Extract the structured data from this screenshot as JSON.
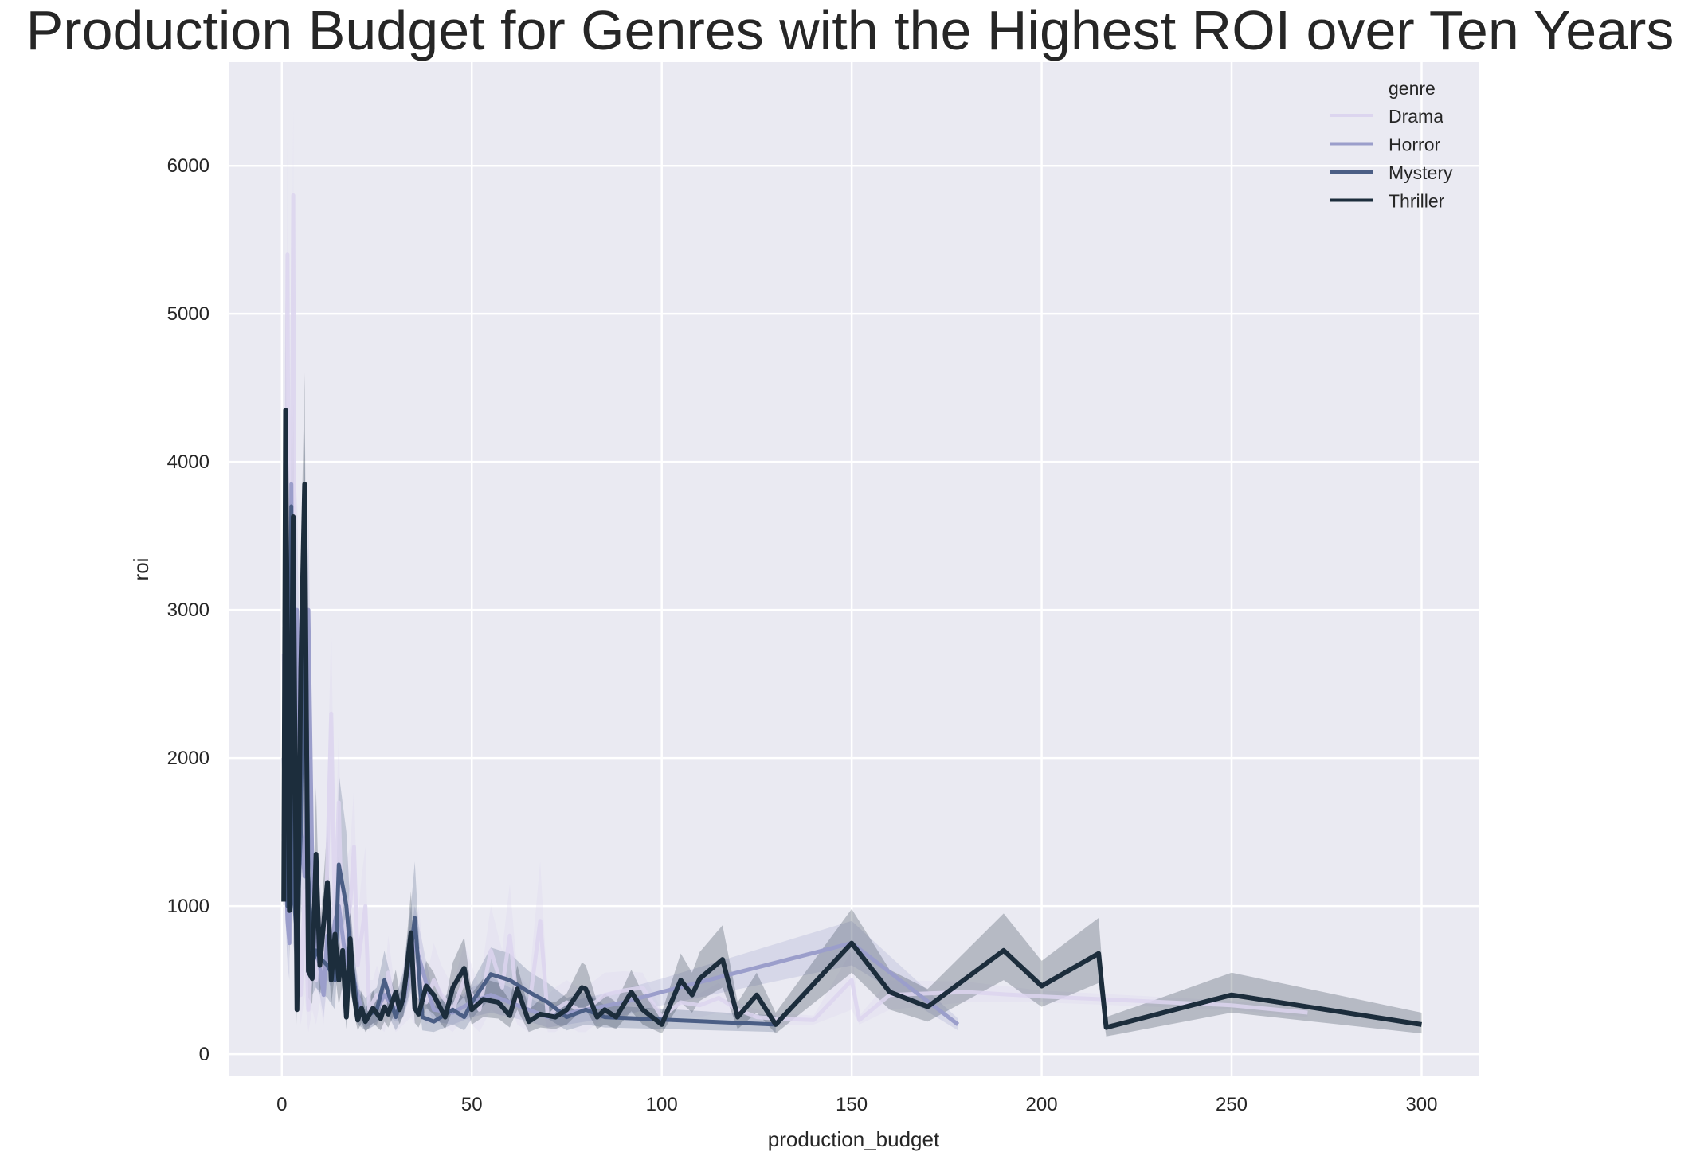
{
  "chart_data": {
    "type": "line",
    "title": "Production Budget for Genres with the Highest ROI over Ten Years",
    "xlabel": "production_budget",
    "ylabel": "roi",
    "xlim": [
      -14,
      315
    ],
    "ylim": [
      -150,
      6700
    ],
    "xticks": [
      0,
      50,
      100,
      150,
      200,
      250,
      300
    ],
    "yticks": [
      0,
      1000,
      2000,
      3000,
      4000,
      5000,
      6000
    ],
    "grid": true,
    "background": "#eaeaf2",
    "legend": {
      "title": "genre",
      "placement": "top-right"
    },
    "series": [
      {
        "name": "Drama",
        "color": "#dcd5ef",
        "width": 5,
        "opacity": 0.85,
        "x": [
          0.5,
          1,
          1.5,
          2,
          2.5,
          3,
          3.5,
          4,
          4.5,
          5,
          6,
          7,
          8,
          9,
          10,
          11,
          12,
          13,
          14,
          15,
          16,
          17,
          18,
          19,
          20,
          21,
          22,
          23,
          24,
          25,
          27,
          28,
          30,
          32,
          34,
          35,
          36,
          38,
          40,
          42,
          45,
          48,
          50,
          52,
          55,
          58,
          60,
          62,
          65,
          68,
          70,
          72,
          75,
          78,
          80,
          85,
          90,
          95,
          100,
          105,
          110,
          115,
          120,
          125,
          130,
          140,
          150,
          152,
          160,
          180,
          200,
          250,
          270
        ],
        "y": [
          2700,
          2000,
          5400,
          1900,
          3200,
          5800,
          1600,
          2400,
          700,
          400,
          1100,
          300,
          700,
          500,
          900,
          400,
          1300,
          2300,
          900,
          1700,
          600,
          900,
          1000,
          1400,
          600,
          800,
          1000,
          300,
          350,
          400,
          300,
          550,
          250,
          400,
          600,
          450,
          700,
          350,
          500,
          400,
          300,
          500,
          400,
          300,
          700,
          450,
          800,
          350,
          300,
          900,
          250,
          300,
          350,
          300,
          300,
          400,
          430,
          450,
          250,
          350,
          330,
          380,
          300,
          250,
          240,
          230,
          500,
          230,
          400,
          420,
          390,
          330,
          280
        ],
        "lower": [
          1200,
          900,
          1800,
          700,
          1000,
          1400,
          600,
          900,
          300,
          200,
          400,
          150,
          300,
          200,
          350,
          200,
          500,
          800,
          400,
          600,
          250,
          350,
          400,
          500,
          300,
          350,
          400,
          150,
          200,
          200,
          150,
          250,
          150,
          200,
          250,
          200,
          300,
          200,
          250,
          200,
          150,
          250,
          200,
          150,
          300,
          250,
          350,
          200,
          150,
          400,
          150,
          150,
          200,
          150,
          150,
          250,
          300,
          350,
          200,
          250,
          250,
          280,
          250,
          200,
          200,
          200,
          300,
          200,
          300,
          350,
          350,
          300,
          250
        ],
        "upper": [
          3200,
          2600,
          6200,
          2600,
          3900,
          6400,
          2200,
          3000,
          1100,
          700,
          1500,
          500,
          1000,
          800,
          1300,
          700,
          1800,
          2900,
          1300,
          2200,
          900,
          1300,
          1400,
          1800,
          900,
          1200,
          1400,
          500,
          500,
          600,
          450,
          800,
          400,
          600,
          900,
          700,
          1000,
          500,
          750,
          600,
          450,
          750,
          600,
          450,
          1000,
          700,
          1150,
          550,
          450,
          1300,
          400,
          450,
          500,
          450,
          450,
          550,
          560,
          550,
          300,
          450,
          410,
          480,
          350,
          300,
          280,
          260,
          700,
          260,
          500,
          490,
          430,
          360,
          310
        ]
      },
      {
        "name": "Horror",
        "color": "#9b9ecb",
        "width": 5,
        "opacity": 1,
        "x": [
          0.5,
          1,
          1.5,
          2,
          2.5,
          3,
          4,
          5,
          6,
          7,
          8,
          9,
          10,
          11,
          12,
          13,
          14,
          15,
          16,
          17,
          18,
          19,
          20,
          21,
          22,
          25,
          27,
          30,
          32,
          35,
          40,
          45,
          50,
          55,
          60,
          65,
          70,
          80,
          90,
          100,
          150,
          178
        ],
        "y": [
          2000,
          1400,
          900,
          750,
          3850,
          1200,
          3000,
          1500,
          1200,
          3000,
          1300,
          700,
          600,
          400,
          800,
          700,
          900,
          1000,
          800,
          600,
          700,
          500,
          400,
          300,
          250,
          300,
          400,
          300,
          350,
          750,
          300,
          280,
          350,
          400,
          350,
          300,
          250,
          300,
          350,
          420,
          750,
          200
        ],
        "lower": [
          1300,
          900,
          600,
          500,
          2500,
          800,
          2000,
          1000,
          800,
          2000,
          850,
          450,
          400,
          250,
          500,
          450,
          600,
          650,
          500,
          400,
          450,
          350,
          280,
          220,
          180,
          220,
          280,
          220,
          250,
          500,
          220,
          200,
          250,
          280,
          250,
          220,
          180,
          220,
          260,
          330,
          600,
          160
        ],
        "upper": [
          2600,
          1900,
          1200,
          1000,
          4100,
          1600,
          3800,
          2000,
          1600,
          3700,
          1700,
          950,
          800,
          550,
          1100,
          950,
          1200,
          1350,
          1100,
          800,
          950,
          650,
          520,
          380,
          320,
          380,
          520,
          380,
          450,
          1000,
          380,
          360,
          450,
          520,
          450,
          380,
          320,
          380,
          440,
          510,
          900,
          240
        ]
      },
      {
        "name": "Mystery",
        "color": "#4b5e85",
        "width": 5,
        "opacity": 1,
        "x": [
          0.5,
          1,
          1.5,
          2,
          2.5,
          3,
          4,
          5,
          6,
          7,
          8,
          9,
          10,
          12,
          14,
          15,
          17,
          18,
          20,
          22,
          25,
          27,
          30,
          32,
          34,
          35,
          37,
          40,
          45,
          48,
          50,
          55,
          60,
          65,
          70,
          75,
          80,
          85,
          130
        ],
        "y": [
          1100,
          2500,
          1000,
          1500,
          3700,
          1100,
          800,
          1500,
          3600,
          1200,
          600,
          700,
          650,
          600,
          500,
          1280,
          1000,
          700,
          300,
          250,
          300,
          500,
          250,
          400,
          700,
          920,
          250,
          220,
          300,
          250,
          350,
          540,
          500,
          420,
          350,
          250,
          300,
          250,
          200
        ],
        "lower": [
          700,
          1700,
          650,
          1000,
          2700,
          750,
          500,
          1000,
          2600,
          800,
          400,
          450,
          420,
          380,
          300,
          800,
          600,
          420,
          200,
          160,
          200,
          320,
          160,
          260,
          450,
          600,
          160,
          150,
          200,
          160,
          240,
          380,
          350,
          300,
          240,
          160,
          200,
          180,
          150
        ],
        "upper": [
          1500,
          3200,
          1400,
          2000,
          4400,
          1500,
          1100,
          2000,
          4200,
          1600,
          850,
          950,
          900,
          850,
          750,
          1900,
          1500,
          1000,
          450,
          380,
          450,
          700,
          380,
          560,
          1000,
          1300,
          380,
          320,
          440,
          380,
          480,
          720,
          680,
          560,
          480,
          380,
          420,
          330,
          260
        ]
      },
      {
        "name": "Thriller",
        "color": "#1c2d3c",
        "width": 6,
        "opacity": 1,
        "x": [
          0.5,
          1,
          2,
          3,
          4,
          5,
          6,
          7,
          8,
          9,
          10,
          12,
          13,
          14,
          15,
          16,
          17,
          18,
          19,
          20,
          21,
          22,
          24,
          26,
          27,
          28,
          30,
          31,
          32,
          34,
          35,
          36,
          38,
          40,
          43,
          45,
          48,
          50,
          53,
          57,
          60,
          62,
          65,
          68,
          72,
          75,
          79,
          80,
          83,
          85,
          88,
          92,
          95,
          100,
          105,
          108,
          110,
          116,
          120,
          125,
          130,
          150,
          160,
          170,
          190,
          200,
          215,
          217,
          250,
          300
        ],
        "y": [
          1030,
          4350,
          970,
          3630,
          300,
          2600,
          3850,
          560,
          510,
          1350,
          600,
          1160,
          500,
          810,
          500,
          700,
          250,
          780,
          400,
          230,
          310,
          220,
          310,
          240,
          320,
          270,
          420,
          300,
          380,
          820,
          310,
          270,
          460,
          400,
          250,
          450,
          580,
          300,
          370,
          350,
          260,
          440,
          220,
          270,
          250,
          300,
          450,
          440,
          250,
          300,
          250,
          420,
          300,
          200,
          500,
          400,
          510,
          640,
          250,
          400,
          200,
          750,
          420,
          320,
          700,
          460,
          680,
          180,
          400,
          200
        ],
        "lower": [
          700,
          3200,
          650,
          2700,
          200,
          1800,
          2800,
          380,
          340,
          900,
          400,
          800,
          330,
          550,
          330,
          470,
          170,
          520,
          270,
          160,
          210,
          150,
          210,
          160,
          220,
          180,
          290,
          200,
          260,
          560,
          210,
          180,
          310,
          270,
          170,
          300,
          390,
          200,
          250,
          240,
          180,
          300,
          150,
          180,
          170,
          200,
          300,
          300,
          170,
          200,
          170,
          290,
          200,
          140,
          350,
          280,
          360,
          450,
          170,
          280,
          140,
          550,
          300,
          220,
          500,
          320,
          480,
          120,
          280,
          140
        ],
        "upper": [
          1400,
          5100,
          1300,
          4400,
          420,
          3300,
          4600,
          760,
          700,
          1800,
          820,
          1550,
          690,
          1100,
          690,
          950,
          350,
          1050,
          550,
          320,
          430,
          300,
          430,
          330,
          440,
          370,
          570,
          410,
          520,
          1100,
          430,
          370,
          630,
          550,
          350,
          620,
          790,
          410,
          510,
          480,
          360,
          600,
          300,
          370,
          350,
          410,
          620,
          600,
          350,
          410,
          350,
          570,
          410,
          280,
          680,
          550,
          690,
          870,
          350,
          550,
          280,
          980,
          570,
          440,
          950,
          630,
          920,
          250,
          550,
          280
        ]
      }
    ]
  }
}
